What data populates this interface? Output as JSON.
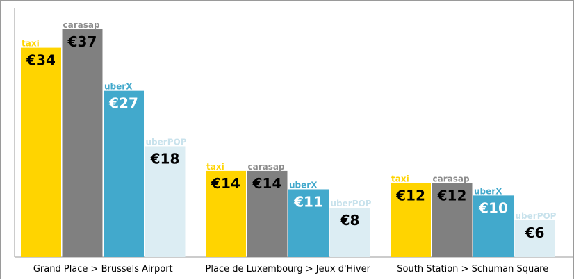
{
  "chart_data": {
    "type": "bar",
    "categories": [
      "Grand Place > Brussels Airport",
      "Place de Luxembourg > Jeux d'Hiver",
      "South Station > Schuman Square"
    ],
    "series": [
      {
        "name": "taxi",
        "values": [
          34,
          14,
          12
        ],
        "labels": [
          "€34",
          "€14",
          "€12"
        ],
        "color": "#ffd400",
        "name_color": "#ffd400",
        "label_color": "#000000"
      },
      {
        "name": "carasap",
        "values": [
          37,
          14,
          12
        ],
        "labels": [
          "€37",
          "€14",
          "€12"
        ],
        "color": "#808080",
        "name_color": "#8c8c8c",
        "label_color": "#000000"
      },
      {
        "name": "uberX",
        "values": [
          27,
          11,
          10
        ],
        "labels": [
          "€27",
          "€11",
          "€10"
        ],
        "color": "#42a9cc",
        "name_color": "#42a9cc",
        "label_color": "#ffffff"
      },
      {
        "name": "uberPOP",
        "values": [
          18,
          8,
          6
        ],
        "labels": [
          "€18",
          "€8",
          "€6"
        ],
        "color": "#dcedf3",
        "name_color": "#c8e2ec",
        "label_color": "#000000"
      }
    ],
    "ylim": [
      0,
      37
    ],
    "grid": false,
    "legend": "none"
  }
}
